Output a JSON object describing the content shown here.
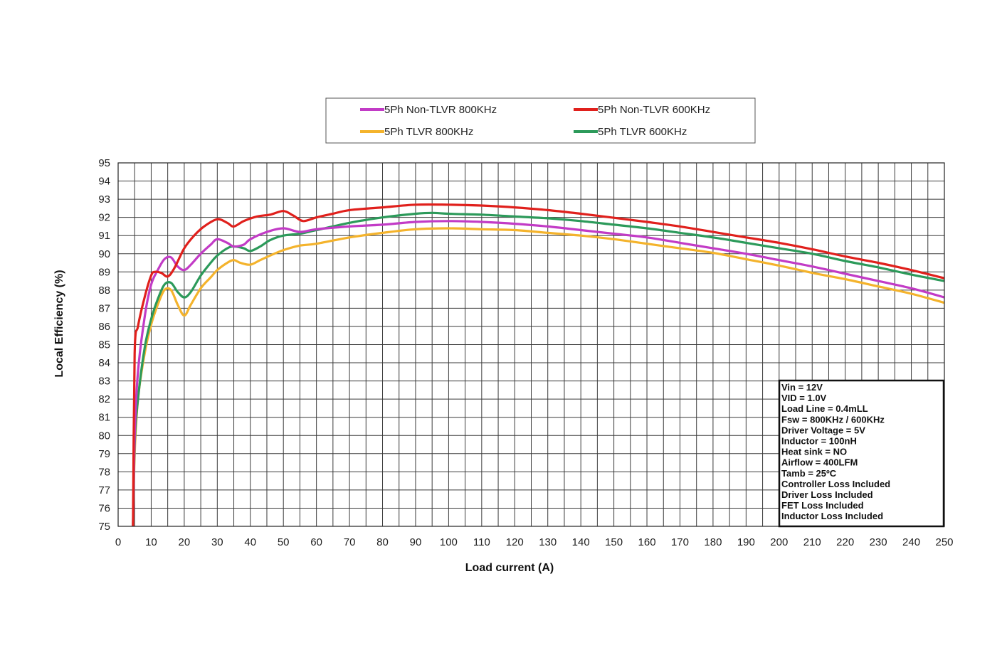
{
  "chart_data": {
    "type": "line",
    "title": "",
    "xlabel": "Load current (A)",
    "ylabel": "Local Efficiency (%)",
    "xlim": [
      0,
      250
    ],
    "ylim": [
      75,
      95
    ],
    "x_ticks": [
      0,
      10,
      20,
      30,
      40,
      50,
      60,
      70,
      80,
      90,
      100,
      110,
      120,
      130,
      140,
      150,
      160,
      170,
      180,
      190,
      200,
      210,
      220,
      230,
      240,
      250
    ],
    "y_ticks": [
      75,
      76,
      77,
      78,
      79,
      80,
      81,
      82,
      83,
      84,
      85,
      86,
      87,
      88,
      89,
      90,
      91,
      92,
      93,
      94,
      95
    ],
    "grid": true,
    "legend_position": "top",
    "series": [
      {
        "name": "5Ph Non-TLVR 800KHz",
        "color": "#c23bc6",
        "points": [
          [
            4.5,
            75
          ],
          [
            5,
            80
          ],
          [
            6,
            83.5
          ],
          [
            8,
            86.5
          ],
          [
            10,
            88.3
          ],
          [
            12,
            89.1
          ],
          [
            14,
            89.7
          ],
          [
            16,
            89.8
          ],
          [
            18,
            89.3
          ],
          [
            20,
            89.1
          ],
          [
            22,
            89.4
          ],
          [
            25,
            90
          ],
          [
            28,
            90.5
          ],
          [
            30,
            90.8
          ],
          [
            33,
            90.6
          ],
          [
            35,
            90.4
          ],
          [
            38,
            90.5
          ],
          [
            40,
            90.8
          ],
          [
            45,
            91.2
          ],
          [
            50,
            91.4
          ],
          [
            55,
            91.2
          ],
          [
            60,
            91.35
          ],
          [
            70,
            91.5
          ],
          [
            80,
            91.6
          ],
          [
            90,
            91.75
          ],
          [
            100,
            91.8
          ],
          [
            110,
            91.75
          ],
          [
            120,
            91.65
          ],
          [
            130,
            91.5
          ],
          [
            140,
            91.3
          ],
          [
            150,
            91.1
          ],
          [
            160,
            90.9
          ],
          [
            170,
            90.6
          ],
          [
            180,
            90.3
          ],
          [
            190,
            90
          ],
          [
            200,
            89.65
          ],
          [
            210,
            89.3
          ],
          [
            220,
            88.9
          ],
          [
            230,
            88.5
          ],
          [
            240,
            88.1
          ],
          [
            250,
            87.6
          ]
        ]
      },
      {
        "name": "5Ph Non-TLVR 600KHz",
        "color": "#e0201c",
        "points": [
          [
            4.5,
            75
          ],
          [
            5,
            84.5
          ],
          [
            6,
            86
          ],
          [
            8,
            87.6
          ],
          [
            10,
            88.8
          ],
          [
            11,
            89
          ],
          [
            13,
            88.95
          ],
          [
            15,
            88.75
          ],
          [
            17,
            89.2
          ],
          [
            20,
            90.3
          ],
          [
            23,
            91
          ],
          [
            26,
            91.5
          ],
          [
            30,
            91.9
          ],
          [
            33,
            91.7
          ],
          [
            35,
            91.5
          ],
          [
            38,
            91.8
          ],
          [
            42,
            92.05
          ],
          [
            46,
            92.15
          ],
          [
            50,
            92.35
          ],
          [
            53,
            92.1
          ],
          [
            56,
            91.8
          ],
          [
            60,
            92
          ],
          [
            65,
            92.2
          ],
          [
            70,
            92.4
          ],
          [
            80,
            92.55
          ],
          [
            90,
            92.7
          ],
          [
            100,
            92.7
          ],
          [
            110,
            92.65
          ],
          [
            120,
            92.55
          ],
          [
            130,
            92.4
          ],
          [
            140,
            92.2
          ],
          [
            150,
            91.98
          ],
          [
            160,
            91.75
          ],
          [
            170,
            91.5
          ],
          [
            180,
            91.2
          ],
          [
            190,
            90.9
          ],
          [
            200,
            90.6
          ],
          [
            210,
            90.25
          ],
          [
            220,
            89.85
          ],
          [
            230,
            89.5
          ],
          [
            240,
            89.1
          ],
          [
            250,
            88.65
          ]
        ]
      },
      {
        "name": "5Ph TLVR 800KHz",
        "color": "#f4b32c",
        "points": [
          [
            4.5,
            75
          ],
          [
            5,
            79
          ],
          [
            6,
            82
          ],
          [
            8,
            84.5
          ],
          [
            10,
            86.1
          ],
          [
            12,
            87.2
          ],
          [
            14,
            88
          ],
          [
            16,
            88
          ],
          [
            18,
            87.2
          ],
          [
            20,
            86.6
          ],
          [
            22,
            87.2
          ],
          [
            25,
            88.1
          ],
          [
            28,
            88.7
          ],
          [
            30,
            89.1
          ],
          [
            33,
            89.5
          ],
          [
            35,
            89.65
          ],
          [
            37,
            89.5
          ],
          [
            40,
            89.4
          ],
          [
            43,
            89.65
          ],
          [
            46,
            89.9
          ],
          [
            50,
            90.2
          ],
          [
            55,
            90.45
          ],
          [
            60,
            90.55
          ],
          [
            70,
            90.9
          ],
          [
            80,
            91.15
          ],
          [
            90,
            91.35
          ],
          [
            100,
            91.4
          ],
          [
            110,
            91.35
          ],
          [
            120,
            91.3
          ],
          [
            130,
            91.15
          ],
          [
            140,
            91
          ],
          [
            150,
            90.8
          ],
          [
            160,
            90.55
          ],
          [
            170,
            90.3
          ],
          [
            180,
            90.05
          ],
          [
            190,
            89.7
          ],
          [
            200,
            89.35
          ],
          [
            210,
            88.95
          ],
          [
            220,
            88.6
          ],
          [
            230,
            88.2
          ],
          [
            240,
            87.8
          ],
          [
            250,
            87.3
          ]
        ]
      },
      {
        "name": "5Ph TLVR 600KHz",
        "color": "#2c9a5a",
        "points": [
          [
            4.5,
            75
          ],
          [
            5,
            79.5
          ],
          [
            6,
            82
          ],
          [
            8,
            84.8
          ],
          [
            10,
            86.4
          ],
          [
            12,
            87.5
          ],
          [
            14,
            88.3
          ],
          [
            16,
            88.4
          ],
          [
            18,
            87.9
          ],
          [
            20,
            87.6
          ],
          [
            22,
            87.9
          ],
          [
            25,
            88.8
          ],
          [
            28,
            89.5
          ],
          [
            30,
            89.9
          ],
          [
            33,
            90.3
          ],
          [
            35,
            90.4
          ],
          [
            38,
            90.3
          ],
          [
            40,
            90.15
          ],
          [
            43,
            90.4
          ],
          [
            46,
            90.75
          ],
          [
            50,
            91
          ],
          [
            55,
            91.1
          ],
          [
            60,
            91.3
          ],
          [
            70,
            91.7
          ],
          [
            80,
            92
          ],
          [
            90,
            92.2
          ],
          [
            95,
            92.25
          ],
          [
            100,
            92.2
          ],
          [
            110,
            92.15
          ],
          [
            120,
            92.05
          ],
          [
            130,
            91.95
          ],
          [
            140,
            91.8
          ],
          [
            150,
            91.6
          ],
          [
            160,
            91.4
          ],
          [
            170,
            91.15
          ],
          [
            180,
            90.9
          ],
          [
            190,
            90.6
          ],
          [
            200,
            90.3
          ],
          [
            210,
            90
          ],
          [
            220,
            89.6
          ],
          [
            230,
            89.25
          ],
          [
            240,
            88.85
          ],
          [
            250,
            88.5
          ]
        ]
      }
    ],
    "annotation_box": {
      "lines": [
        {
          "text": "Vin = 12V",
          "color": "#111111"
        },
        {
          "text": "VID = 1.0V",
          "color": "#111111"
        },
        {
          "text": "Load Line = 0.4mLL",
          "color": "#111111"
        },
        {
          "text": "Fsw = 800KHz / 600KHz",
          "color": "#111111"
        },
        {
          "text": "Driver Voltage = 5V",
          "color": "#111111"
        },
        {
          "text": "Inductor = 100nH",
          "color": "#111111"
        },
        {
          "text": " Heat sink = NO",
          "color": "#111111"
        },
        {
          "text": "Airflow = 400LFM",
          "color": "#111111"
        },
        {
          "text": "Tamb = 25ºC",
          "color": "#111111"
        },
        {
          "text": "Controller Loss Included",
          "color": "#e0201c"
        },
        {
          "text": "Driver Loss Included",
          "color": "#e0201c"
        },
        {
          "text": "FET Loss Included",
          "color": "#e0201c"
        },
        {
          "text": "Inductor Loss Included",
          "color": "#e0201c"
        }
      ]
    }
  }
}
